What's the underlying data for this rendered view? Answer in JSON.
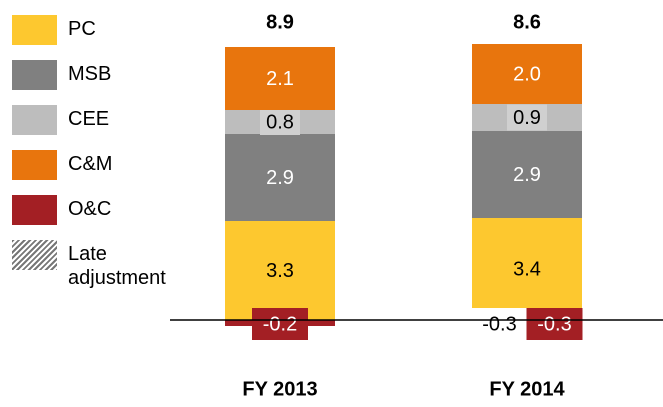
{
  "chart_data": {
    "type": "stacked_bar",
    "categories": [
      "FY 2013",
      "FY 2014"
    ],
    "totals": [
      8.9,
      8.6
    ],
    "series": [
      {
        "name": "PC",
        "color": "#fdc82f",
        "label_color": "#000000",
        "values": [
          3.3,
          3.4
        ]
      },
      {
        "name": "MSB",
        "color": "#808080",
        "label_color": "#ffffff",
        "values": [
          2.9,
          2.9
        ]
      },
      {
        "name": "CEE",
        "color": "#bdbdbd",
        "label_color": "#000000",
        "values": [
          0.8,
          0.9
        ]
      },
      {
        "name": "C&M",
        "color": "#e8750d",
        "label_color": "#ffffff",
        "values": [
          2.1,
          2.0
        ],
        "value_labels": [
          "2.1",
          "2.0"
        ]
      },
      {
        "name": "O&C",
        "color": "#a31f24",
        "label_color": "#ffffff",
        "values": [
          -0.2,
          -0.3
        ]
      },
      {
        "name": "Late adjustment",
        "color": "#ffffff",
        "pattern": "hatch",
        "label_color": "#000000",
        "values": [
          null,
          -0.3
        ]
      }
    ]
  }
}
